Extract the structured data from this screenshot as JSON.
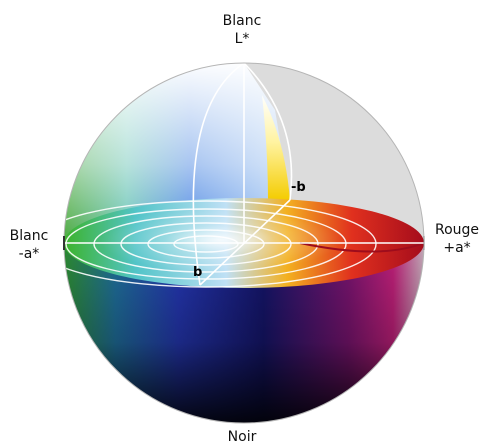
{
  "labels": {
    "top": {
      "name": "Blanc",
      "axis": "L*"
    },
    "left": {
      "name": "Blanc",
      "axis": "-a*"
    },
    "right": {
      "name": "Rouge",
      "axis": "+a*"
    },
    "bottom": {
      "name": "Noir"
    },
    "minus_b": "-b",
    "b": "b"
  },
  "colors": {
    "green": "#4caf2a",
    "blue": "#2a3fb8",
    "navy": "#14145a",
    "red": "#c0102a",
    "magenta": "#b01070",
    "yellow": "#f5d800",
    "black": "#050505",
    "white": "#ffffff",
    "cutout": "#dcdcdc"
  }
}
